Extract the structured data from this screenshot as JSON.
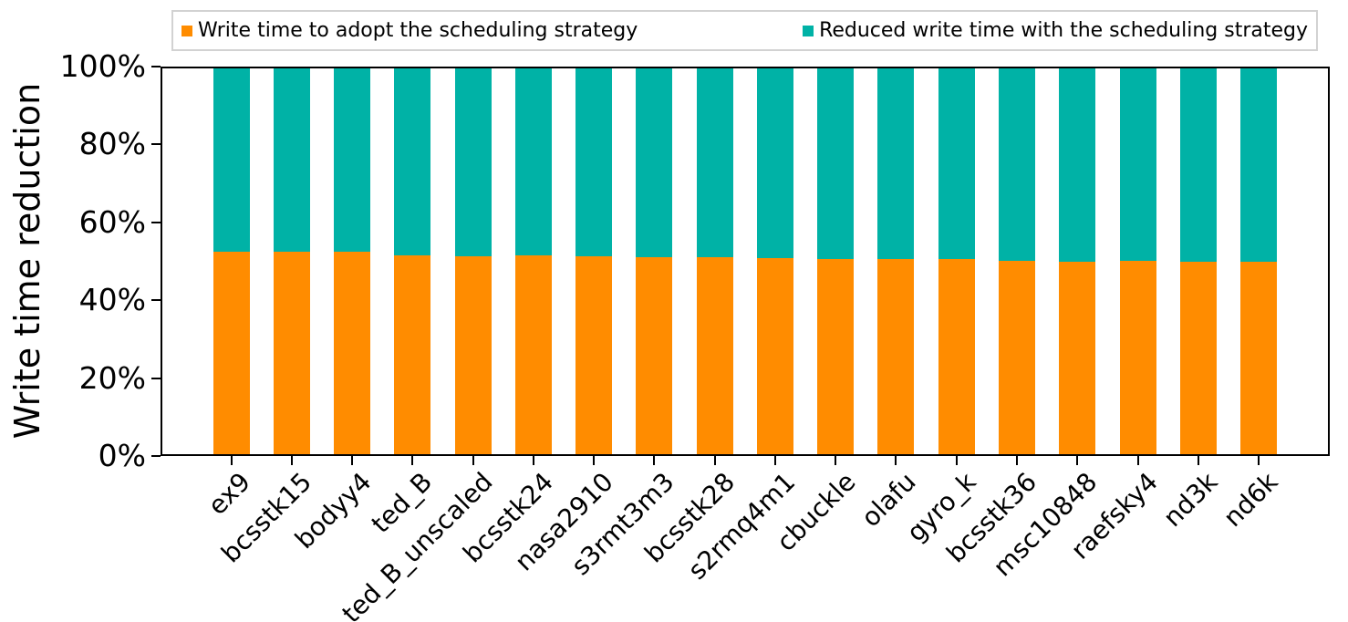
{
  "chart_data": {
    "type": "bar",
    "stacked": true,
    "title": "",
    "xlabel": "",
    "ylabel": "Write time reduction",
    "ylim": [
      0,
      100
    ],
    "yticks": [
      "0%",
      "20%",
      "40%",
      "60%",
      "80%",
      "100%"
    ],
    "grid": false,
    "legend_position": "top",
    "categories": [
      "ex9",
      "bcsstk15",
      "bodyy4",
      "ted_B",
      "ted_B_unscaled",
      "bcsstk24",
      "nasa2910",
      "s3rmt3m3",
      "bcsstk28",
      "s2rmq4m1",
      "cbuckle",
      "olafu",
      "gyro_k",
      "bcsstk36",
      "msc10848",
      "raefsky4",
      "nd3k",
      "nd6k"
    ],
    "series": [
      {
        "name": "Write time to adopt the scheduling strategy",
        "color": "#FF8C00",
        "values": [
          52.5,
          52.5,
          52.6,
          51.5,
          51.4,
          51.6,
          51.2,
          51.1,
          51.1,
          50.9,
          50.5,
          50.5,
          50.7,
          50.1,
          50.0,
          50.2,
          49.9,
          49.8
        ]
      },
      {
        "name": "Reduced write time with the scheduling strategy",
        "color": "#00B2A6",
        "values": [
          47.5,
          47.5,
          47.4,
          48.5,
          48.6,
          48.4,
          48.8,
          48.9,
          48.9,
          49.1,
          49.5,
          49.5,
          49.3,
          49.9,
          50.0,
          49.8,
          50.1,
          50.2
        ]
      }
    ]
  }
}
